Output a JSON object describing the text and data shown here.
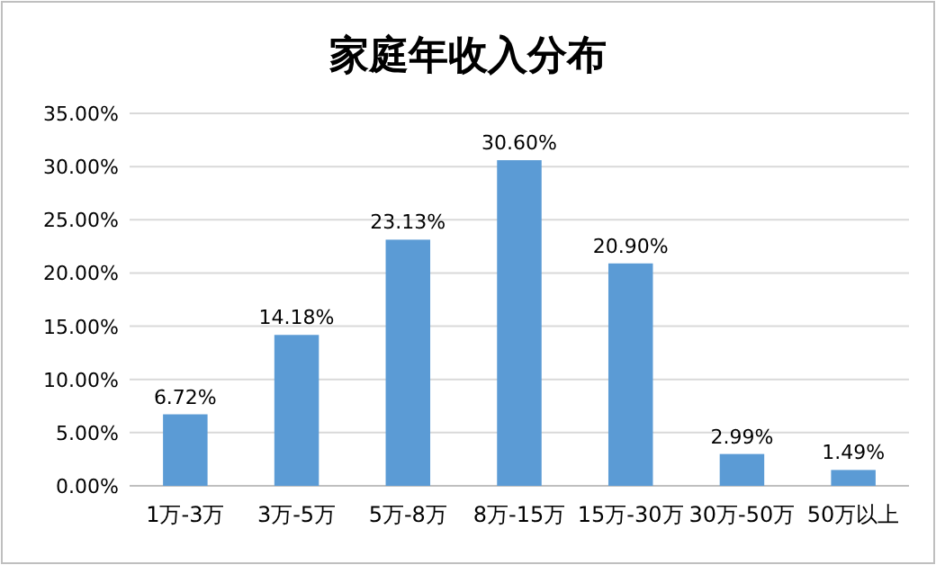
{
  "chart_data": {
    "type": "bar",
    "title": "家庭年收入分布",
    "categories": [
      "1万-3万",
      "3万-5万",
      "5万-8万",
      "8万-15万",
      "15万-30万",
      "30万-50万",
      "50万以上"
    ],
    "values": [
      6.72,
      14.18,
      23.13,
      30.6,
      20.9,
      2.99,
      1.49
    ],
    "value_labels": [
      "6.72%",
      "14.18%",
      "23.13%",
      "30.60%",
      "20.90%",
      "2.99%",
      "1.49%"
    ],
    "color": "#5b9bd5",
    "ylim": [
      0,
      35
    ],
    "yticks": [
      {
        "value": 0,
        "label": "0.00%"
      },
      {
        "value": 5,
        "label": "5.00%"
      },
      {
        "value": 10,
        "label": "10.00%"
      },
      {
        "value": 15,
        "label": "15.00%"
      },
      {
        "value": 20,
        "label": "20.00%"
      },
      {
        "value": 25,
        "label": "25.00%"
      },
      {
        "value": 30,
        "label": "30.00%"
      },
      {
        "value": 35,
        "label": "35.00%"
      }
    ],
    "grid": "y"
  }
}
